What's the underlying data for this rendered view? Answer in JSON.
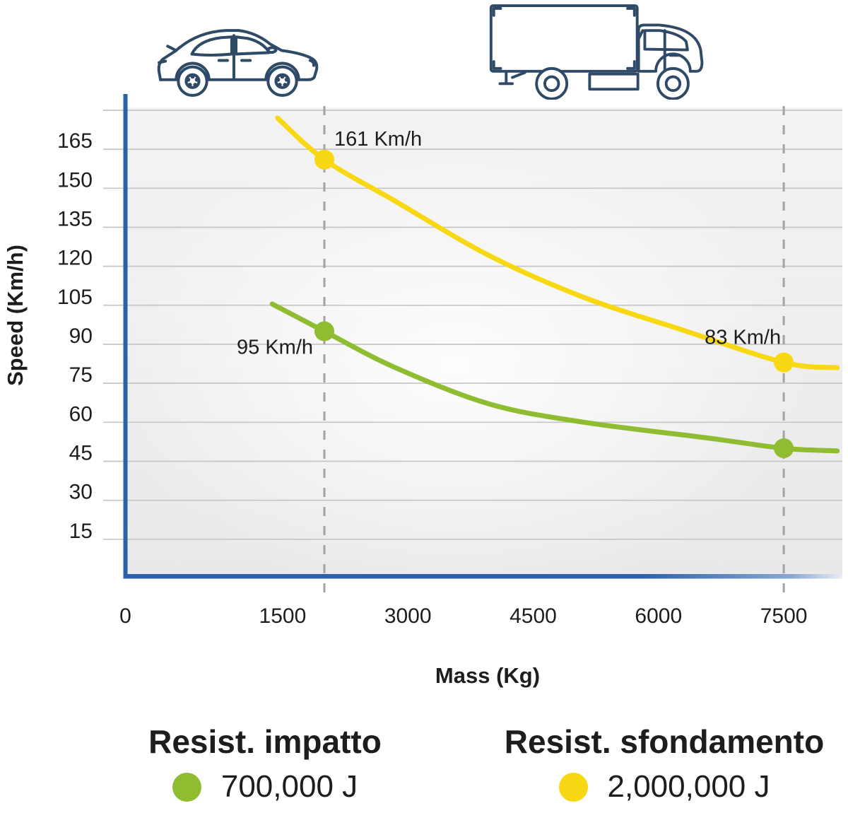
{
  "colors": {
    "axis_blue": "#2d61a7",
    "icon_navy": "#2f4a66",
    "grid_line": "#c6c6c6",
    "guide_line": "#a3a3a3",
    "text_dark": "#1d1d1b",
    "impatto_green": "#8fbc30",
    "sfondamento_yellow": "#f8d812",
    "plot_bg": "#ececec"
  },
  "icons": {
    "left": "car-icon",
    "right": "truck-icon"
  },
  "chart_data": {
    "type": "line",
    "xlabel": "Mass (Kg)",
    "ylabel": "Speed (Km/h)",
    "x_ticks": [
      0,
      1500,
      3000,
      4500,
      6000,
      7500
    ],
    "y_ticks": [
      165,
      150,
      135,
      120,
      105,
      90,
      75,
      60,
      45,
      30,
      15
    ],
    "y_grid_extra": [
      180
    ],
    "xlim": [
      0,
      8200
    ],
    "ylim": [
      0,
      187
    ],
    "grid": true,
    "x_guides": [
      2000,
      7500
    ],
    "series": [
      {
        "name": "Resist. impatto",
        "energy": "700,000 J",
        "color": "#8fbc30",
        "points": [
          [
            1375,
            105.5
          ],
          [
            2000,
            95
          ],
          [
            2850,
            81
          ],
          [
            3980,
            67
          ],
          [
            5110,
            60
          ],
          [
            6580,
            54
          ],
          [
            7500,
            50
          ],
          [
            8140,
            49
          ]
        ]
      },
      {
        "name": "Resist. sfondamento",
        "energy": "2,000,000 J",
        "color": "#f8d812",
        "points": [
          [
            1440,
            177
          ],
          [
            2000,
            161
          ],
          [
            2850,
            145
          ],
          [
            3980,
            124
          ],
          [
            5110,
            108
          ],
          [
            6240,
            96
          ],
          [
            7500,
            83
          ],
          [
            8140,
            81
          ]
        ]
      }
    ],
    "markers": [
      {
        "series": 1,
        "mass": 2000,
        "speed": 161,
        "label": "161 Km/h",
        "label_pos": "above-right"
      },
      {
        "series": 0,
        "mass": 2000,
        "speed": 95,
        "label": "95 Km/h",
        "label_pos": "below-left"
      },
      {
        "series": 1,
        "mass": 7500,
        "speed": 83,
        "label": "83 Km/h",
        "label_pos": "above-left"
      },
      {
        "series": 0,
        "mass": 7500,
        "speed": 50,
        "label": "",
        "label_pos": "none"
      }
    ]
  },
  "legend": {
    "items": [
      {
        "title": "Resist. impatto",
        "value": "700,000 J",
        "color": "#8fbc30"
      },
      {
        "title": "Resist. sfondamento",
        "value": "2,000,000 J",
        "color": "#f8d812"
      }
    ]
  }
}
